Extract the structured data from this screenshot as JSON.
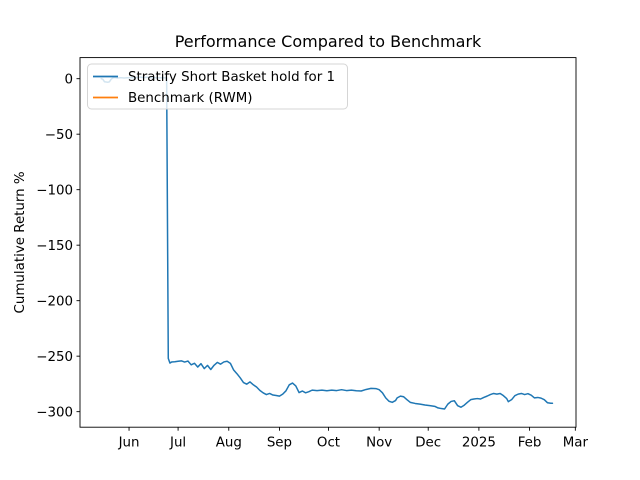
{
  "chart_data": {
    "type": "line",
    "title": "Performance Compared to Benchmark",
    "xlabel": "",
    "ylabel": "Cumulative Return %",
    "x_axis_note": "x values are days relative to Jun 1; axis spans late Apr to early Mar",
    "xlim_days": [
      -30,
      273.4
    ],
    "ylim": [
      -314,
      19
    ],
    "grid": false,
    "legend_position": "upper left",
    "x_ticks": [
      {
        "label": "Jun",
        "day": 0
      },
      {
        "label": "Jul",
        "day": 30
      },
      {
        "label": "Aug",
        "day": 61
      },
      {
        "label": "Sep",
        "day": 92
      },
      {
        "label": "Oct",
        "day": 122
      },
      {
        "label": "Nov",
        "day": 153
      },
      {
        "label": "Dec",
        "day": 183
      },
      {
        "label": "2025",
        "day": 214
      },
      {
        "label": "Feb",
        "day": 245
      },
      {
        "label": "Mar",
        "day": 273
      }
    ],
    "y_ticks": [
      {
        "label": "0",
        "value": 0
      },
      {
        "label": "−50",
        "value": -50
      },
      {
        "label": "−100",
        "value": -100
      },
      {
        "label": "−150",
        "value": -150
      },
      {
        "label": "−200",
        "value": -200
      },
      {
        "label": "−250",
        "value": -250
      },
      {
        "label": "−300",
        "value": -300
      }
    ],
    "series": [
      {
        "name": "Stratify Short Basket hold for 1",
        "color": "#1f77b4",
        "points": [
          [
            -17,
            0
          ],
          [
            -16,
            -0.6
          ],
          [
            -15,
            -2.8
          ],
          [
            -13,
            -3.2
          ],
          [
            -12,
            -2.8
          ],
          [
            -11,
            -0.6
          ],
          [
            -10,
            0.6
          ],
          [
            -9,
            1.1
          ],
          [
            -7,
            0.6
          ],
          [
            -5,
            0.9
          ],
          [
            -3,
            0.6
          ],
          [
            -1,
            0.8
          ],
          [
            1,
            1
          ],
          [
            3,
            0.7
          ],
          [
            5,
            1.1
          ],
          [
            7,
            1.4
          ],
          [
            9,
            1
          ],
          [
            11,
            1.3
          ],
          [
            13,
            0.9
          ],
          [
            15,
            1.1
          ],
          [
            17,
            0.7
          ],
          [
            19,
            0.9
          ],
          [
            21,
            0.8
          ],
          [
            23,
            0.6
          ],
          [
            24,
            -252
          ],
          [
            25,
            -256.2
          ],
          [
            26,
            -255.3
          ],
          [
            28,
            -255
          ],
          [
            30,
            -254.6
          ],
          [
            32,
            -254.2
          ],
          [
            34,
            -255.3
          ],
          [
            36,
            -254.4
          ],
          [
            38,
            -257.8
          ],
          [
            40,
            -256.4
          ],
          [
            42,
            -259.8
          ],
          [
            44,
            -256.8
          ],
          [
            46,
            -261.2
          ],
          [
            48,
            -258.3
          ],
          [
            50,
            -262
          ],
          [
            52,
            -258.2
          ],
          [
            54,
            -255.6
          ],
          [
            56,
            -257.2
          ],
          [
            58,
            -255.2
          ],
          [
            60,
            -254.6
          ],
          [
            62,
            -256.5
          ],
          [
            64,
            -262.5
          ],
          [
            66,
            -265.8
          ],
          [
            68,
            -269.5
          ],
          [
            70,
            -273.8
          ],
          [
            72,
            -275.2
          ],
          [
            74,
            -273.2
          ],
          [
            76,
            -275.8
          ],
          [
            78,
            -277.8
          ],
          [
            80,
            -280.8
          ],
          [
            82,
            -283
          ],
          [
            84,
            -284.6
          ],
          [
            86,
            -283.6
          ],
          [
            88,
            -285
          ],
          [
            90,
            -285.4
          ],
          [
            92,
            -286
          ],
          [
            94,
            -284.2
          ],
          [
            96,
            -281.2
          ],
          [
            98,
            -275.8
          ],
          [
            100,
            -274.2
          ],
          [
            102,
            -276.8
          ],
          [
            104,
            -282.8
          ],
          [
            106,
            -281.4
          ],
          [
            108,
            -283
          ],
          [
            110,
            -282
          ],
          [
            112,
            -280.6
          ],
          [
            115,
            -281
          ],
          [
            118,
            -280.6
          ],
          [
            121,
            -281.2
          ],
          [
            124,
            -280.6
          ],
          [
            127,
            -281
          ],
          [
            130,
            -280.2
          ],
          [
            133,
            -281
          ],
          [
            136,
            -280.6
          ],
          [
            139,
            -281.2
          ],
          [
            142,
            -281.4
          ],
          [
            145,
            -280
          ],
          [
            148,
            -279
          ],
          [
            151,
            -279.2
          ],
          [
            153,
            -280.2
          ],
          [
            155,
            -283
          ],
          [
            157,
            -287.6
          ],
          [
            159,
            -290.6
          ],
          [
            161,
            -291.6
          ],
          [
            163,
            -290
          ],
          [
            164,
            -287.6
          ],
          [
            166,
            -286
          ],
          [
            168,
            -286.6
          ],
          [
            170,
            -289.2
          ],
          [
            172,
            -291.6
          ],
          [
            175,
            -292.6
          ],
          [
            178,
            -293.2
          ],
          [
            181,
            -294
          ],
          [
            184,
            -294.6
          ],
          [
            187,
            -295.2
          ],
          [
            189,
            -296.6
          ],
          [
            191,
            -297.2
          ],
          [
            193,
            -297.6
          ],
          [
            195,
            -293.2
          ],
          [
            197,
            -290.8
          ],
          [
            199,
            -290.2
          ],
          [
            201,
            -294.6
          ],
          [
            203,
            -296
          ],
          [
            205,
            -294.2
          ],
          [
            207,
            -291.6
          ],
          [
            209,
            -289.2
          ],
          [
            211,
            -288.6
          ],
          [
            213,
            -288.2
          ],
          [
            215,
            -288.6
          ],
          [
            217,
            -287.2
          ],
          [
            219,
            -286
          ],
          [
            221,
            -284.6
          ],
          [
            223,
            -283.6
          ],
          [
            225,
            -284.2
          ],
          [
            227,
            -283.6
          ],
          [
            229,
            -285.6
          ],
          [
            231,
            -288.2
          ],
          [
            232,
            -291
          ],
          [
            234,
            -289.2
          ],
          [
            236,
            -285.6
          ],
          [
            238,
            -284.2
          ],
          [
            240,
            -283.6
          ],
          [
            242,
            -284.6
          ],
          [
            244,
            -283.8
          ],
          [
            246,
            -285.2
          ],
          [
            248,
            -287.6
          ],
          [
            250,
            -287.2
          ],
          [
            252,
            -287.8
          ],
          [
            254,
            -289.2
          ],
          [
            256,
            -292
          ],
          [
            258,
            -292.4
          ],
          [
            259,
            -292.4
          ]
        ]
      },
      {
        "name": "Benchmark (RWM)",
        "color": "#ff7f0e",
        "points": []
      }
    ],
    "legend": {
      "entries": [
        {
          "label": "Stratify Short Basket hold for 1",
          "color": "#1f77b4"
        },
        {
          "label": "Benchmark (RWM)",
          "color": "#ff7f0e"
        }
      ]
    }
  }
}
